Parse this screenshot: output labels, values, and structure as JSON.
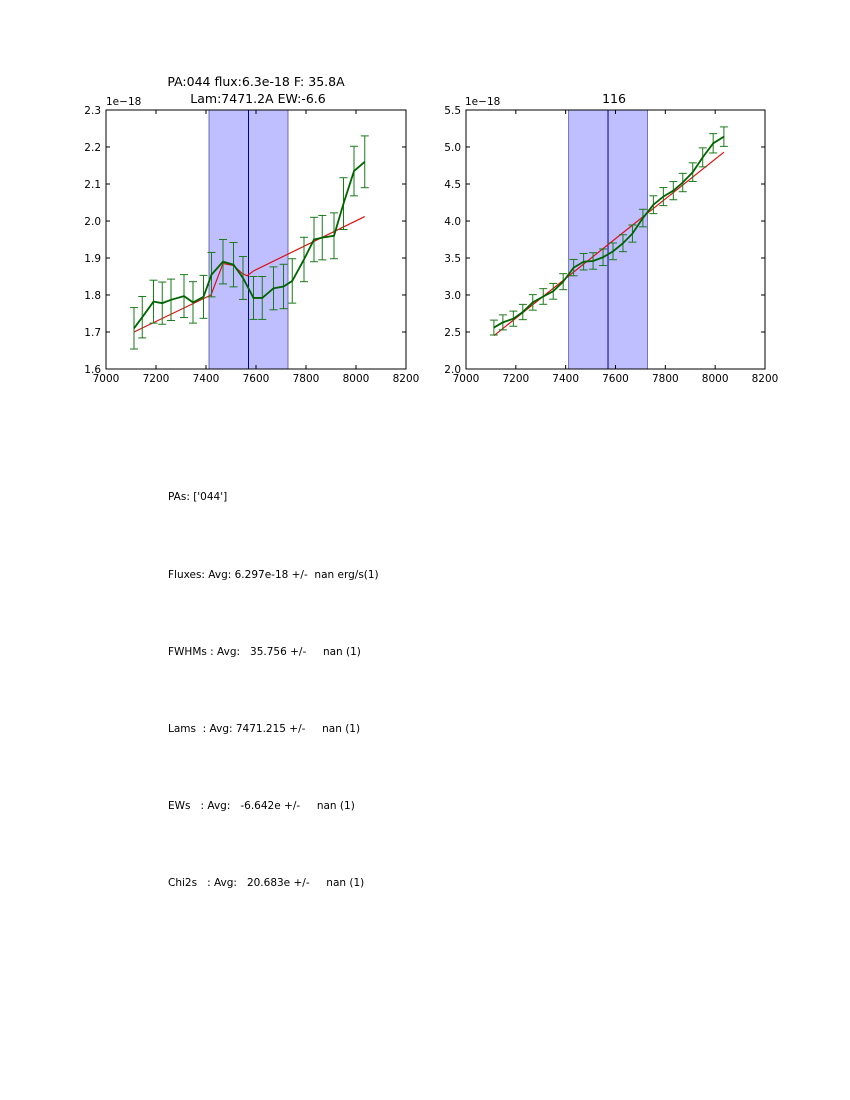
{
  "chart_data": [
    {
      "type": "line",
      "title": "PA:044 flux:6.3e-18 F: 35.8A",
      "title_line2": "Lam:7471.2A EW:-6.6",
      "offset_label": "1e−18",
      "xlim": [
        7000,
        8200
      ],
      "ylim": [
        1.6,
        2.3
      ],
      "xticks": [
        "7000",
        "7200",
        "7400",
        "7600",
        "7800",
        "8000",
        "8200"
      ],
      "yticks": [
        "1.6",
        "1.7",
        "1.8",
        "1.9",
        "2.0",
        "2.1",
        "2.2",
        "2.3"
      ],
      "shade_band": [
        7412,
        7728
      ],
      "center_line": 7570,
      "colors": {
        "data": "#006400",
        "errorbar": "#1a7a1a",
        "fit": "#dd1111",
        "band": "#8080ff",
        "center": "#00008b"
      },
      "series": [
        {
          "name": "data",
          "x": [
            7112,
            7145,
            7190,
            7225,
            7260,
            7312,
            7348,
            7390,
            7422,
            7468,
            7510,
            7548,
            7590,
            7625,
            7670,
            7710,
            7745,
            7792,
            7832,
            7865,
            7912,
            7950,
            7992,
            8035
          ],
          "y": [
            1.71,
            1.74,
            1.782,
            1.778,
            1.787,
            1.797,
            1.78,
            1.795,
            1.855,
            1.89,
            1.882,
            1.846,
            1.792,
            1.792,
            1.818,
            1.823,
            1.838,
            1.896,
            1.95,
            1.955,
            1.96,
            2.047,
            2.135,
            2.16
          ],
          "yerr": [
            0.056,
            0.056,
            0.058,
            0.057,
            0.056,
            0.058,
            0.056,
            0.058,
            0.06,
            0.06,
            0.06,
            0.058,
            0.058,
            0.058,
            0.058,
            0.06,
            0.06,
            0.06,
            0.06,
            0.06,
            0.062,
            0.07,
            0.067,
            0.07
          ]
        },
        {
          "name": "fit",
          "x": [
            7112,
            7420,
            7468,
            7510,
            7545,
            7565,
            7590,
            8035
          ],
          "y": [
            1.7,
            1.8,
            1.885,
            1.88,
            1.858,
            1.852,
            1.865,
            2.012
          ]
        }
      ]
    },
    {
      "type": "line",
      "title": "116",
      "offset_label": "1e−18",
      "xlim": [
        7000,
        8200
      ],
      "ylim": [
        2.0,
        5.5
      ],
      "xticks": [
        "7000",
        "7200",
        "7400",
        "7600",
        "7800",
        "8000",
        "8200"
      ],
      "yticks": [
        "2.0",
        "2.5",
        "3.0",
        "3.5",
        "4.0",
        "4.5",
        "5.0",
        "5.5"
      ],
      "shade_band": [
        7412,
        7728
      ],
      "center_line": 7570,
      "colors": {
        "data": "#006400",
        "errorbar": "#1a7a1a",
        "fit": "#dd1111",
        "band": "#8080ff",
        "center": "#00008b"
      },
      "series": [
        {
          "name": "data",
          "x": [
            7112,
            7148,
            7190,
            7228,
            7268,
            7310,
            7350,
            7390,
            7432,
            7472,
            7510,
            7550,
            7590,
            7630,
            7668,
            7710,
            7752,
            7792,
            7832,
            7870,
            7910,
            7950,
            7992,
            8035
          ],
          "y": [
            2.56,
            2.63,
            2.68,
            2.77,
            2.9,
            2.98,
            3.05,
            3.18,
            3.37,
            3.45,
            3.46,
            3.51,
            3.59,
            3.7,
            3.83,
            4.04,
            4.22,
            4.33,
            4.41,
            4.52,
            4.66,
            4.86,
            5.05,
            5.14
          ]
        },
        {
          "name": "fit",
          "x": [
            7112,
            8035
          ],
          "y": [
            2.45,
            4.93
          ]
        }
      ]
    }
  ],
  "summary": {
    "line1": "PAs: ['044']",
    "line2": "Fluxes: Avg: 6.297e-18 +/-  nan erg/s(1)",
    "line3": "FWHMs : Avg:   35.756 +/-     nan (1)",
    "line4": "Lams  : Avg: 7471.215 +/-     nan (1)",
    "line5": "EWs   : Avg:   -6.642e +/-     nan (1)",
    "line6": "Chi2s   : Avg:   20.683e +/-     nan (1)"
  }
}
